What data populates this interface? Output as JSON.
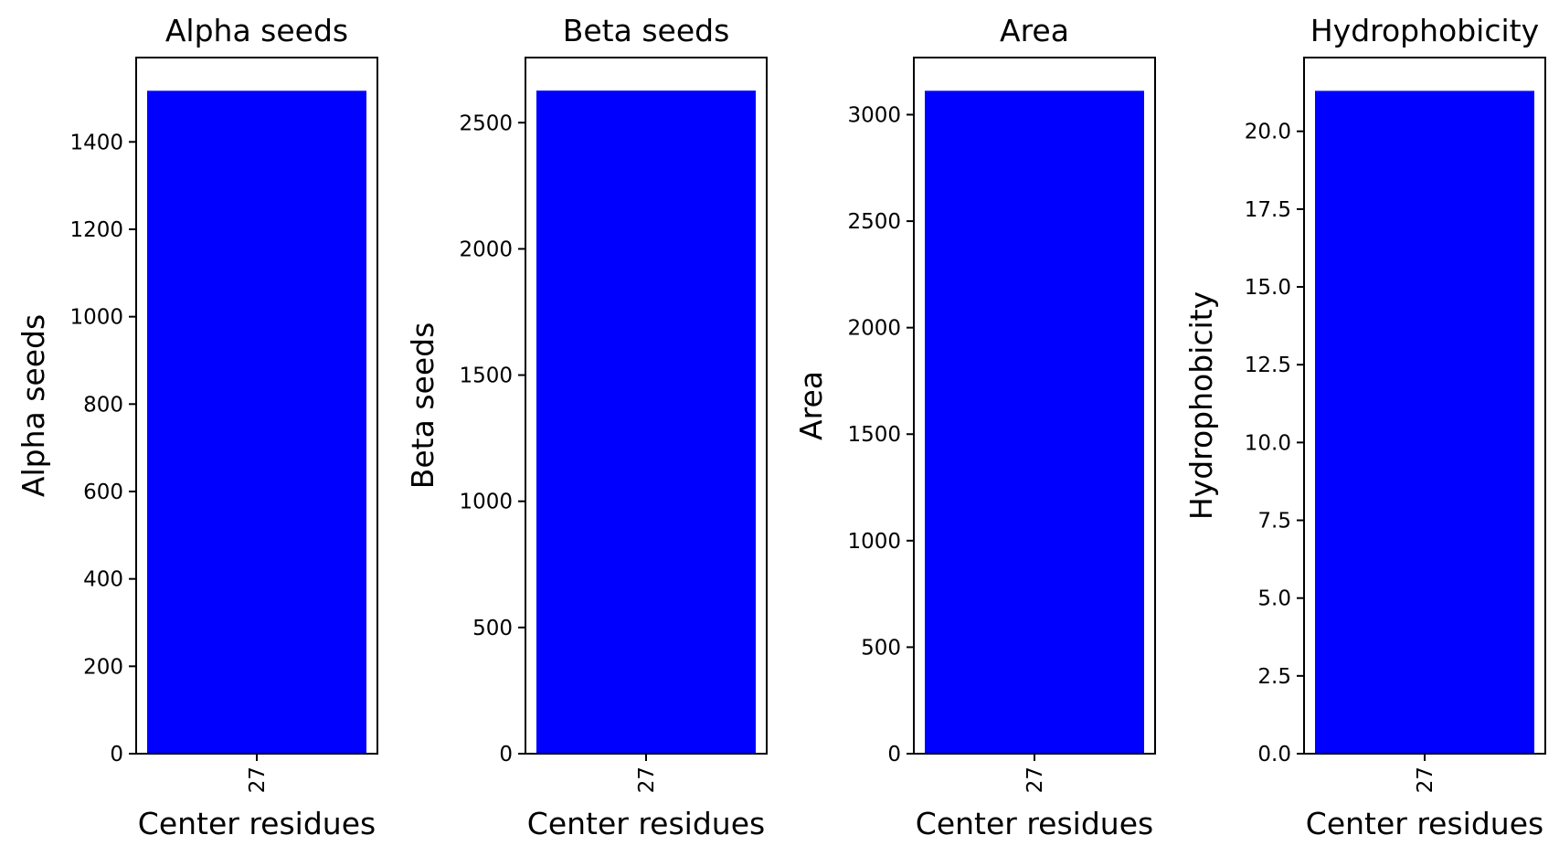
{
  "figure": {
    "background": "#ffffff",
    "bar_color": "#0000ff",
    "axis_color": "#000000"
  },
  "chart_data": [
    {
      "type": "bar",
      "title": "Alpha seeds",
      "xlabel": "Center residues",
      "ylabel": "Alpha seeds",
      "categories": [
        "27"
      ],
      "values": [
        1517
      ],
      "ylim": [
        0,
        1593
      ],
      "yticks": [
        0,
        200,
        400,
        600,
        800,
        1000,
        1200,
        1400
      ],
      "ytick_labels": [
        "0",
        "200",
        "400",
        "600",
        "800",
        "1000",
        "1200",
        "1400"
      ],
      "grid": false,
      "legend": "none"
    },
    {
      "type": "bar",
      "title": "Beta seeds",
      "xlabel": "Center residues",
      "ylabel": "Beta seeds",
      "categories": [
        "27"
      ],
      "values": [
        2627
      ],
      "ylim": [
        0,
        2758
      ],
      "yticks": [
        0,
        500,
        1000,
        1500,
        2000,
        2500
      ],
      "ytick_labels": [
        "0",
        "500",
        "1000",
        "1500",
        "2000",
        "2500"
      ],
      "grid": false,
      "legend": "none"
    },
    {
      "type": "bar",
      "title": "Area",
      "xlabel": "Center residues",
      "ylabel": "Area",
      "categories": [
        "27"
      ],
      "values": [
        3112
      ],
      "ylim": [
        0,
        3268
      ],
      "yticks": [
        0,
        500,
        1000,
        1500,
        2000,
        2500,
        3000
      ],
      "ytick_labels": [
        "0",
        "500",
        "1000",
        "1500",
        "2000",
        "2500",
        "3000"
      ],
      "grid": false,
      "legend": "none"
    },
    {
      "type": "bar",
      "title": "Hydrophobicity",
      "xlabel": "Center residues",
      "ylabel": "Hydrophobicity",
      "categories": [
        "27"
      ],
      "values": [
        21.3
      ],
      "ylim": [
        0,
        22.37
      ],
      "yticks": [
        0,
        2.5,
        5,
        7.5,
        10,
        12.5,
        15,
        17.5,
        20
      ],
      "ytick_labels": [
        "0.0",
        "2.5",
        "5.0",
        "7.5",
        "10.0",
        "12.5",
        "15.0",
        "17.5",
        "20.0"
      ],
      "grid": false,
      "legend": "none"
    }
  ]
}
